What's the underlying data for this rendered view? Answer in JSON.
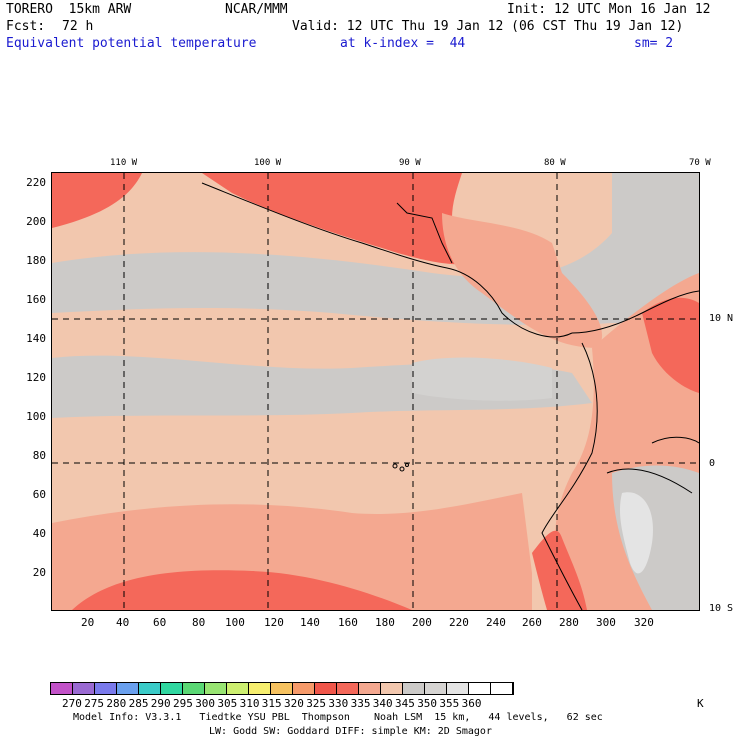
{
  "header": {
    "model": "TORERO  15km ARW",
    "center": "NCAR/MMM",
    "init": "Init: 12 UTC Mon 16 Jan 12",
    "fcst_label": "Fcst:",
    "fcst_value": "72 h",
    "valid": "Valid: 12 UTC Thu 19 Jan 12 (06 CST Thu 19 Jan 12)",
    "field": "Equivalent potential temperature",
    "level": "at k-index =  44",
    "smoothing": "sm= 2"
  },
  "map": {
    "lon_labels": [
      "110 W",
      "100 W",
      "90 W",
      "80 W",
      "70 W"
    ],
    "lat_labels": [
      "10 N",
      "0",
      "10 S"
    ],
    "y_ticks": [
      "220",
      "200",
      "180",
      "160",
      "140",
      "120",
      "100",
      "80",
      "60",
      "40",
      "20"
    ],
    "x_ticks": [
      "20",
      "40",
      "60",
      "80",
      "100",
      "120",
      "140",
      "160",
      "180",
      "200",
      "220",
      "240",
      "260",
      "280",
      "300",
      "320"
    ]
  },
  "colorbar": {
    "colors": [
      "#c252c8",
      "#9a6ad2",
      "#7a7aec",
      "#6aa0ee",
      "#3acbc8",
      "#30d7a0",
      "#5ad774",
      "#98e472",
      "#cdef70",
      "#f6ee6e",
      "#f6c260",
      "#f69a6a",
      "#f0564a",
      "#f4685a",
      "#f4a890",
      "#f2c7ae",
      "#cccac8",
      "#d6d4d2",
      "#e4e4e4",
      "#ffffff",
      "#ffffff"
    ],
    "labels": [
      "270",
      "275",
      "280",
      "285",
      "290",
      "295",
      "300",
      "305",
      "310",
      "315",
      "320",
      "325",
      "330",
      "335",
      "340",
      "345",
      "350",
      "355",
      "360"
    ],
    "unit": "K"
  },
  "footer": {
    "line1": "Model Info: V3.3.1   Tiedtke YSU PBL  Thompson    Noah LSM  15 km,   44 levels,   62 sec",
    "line2": "LW: Godd SW: Goddard DIFF: simple KM: 2D Smagor"
  }
}
